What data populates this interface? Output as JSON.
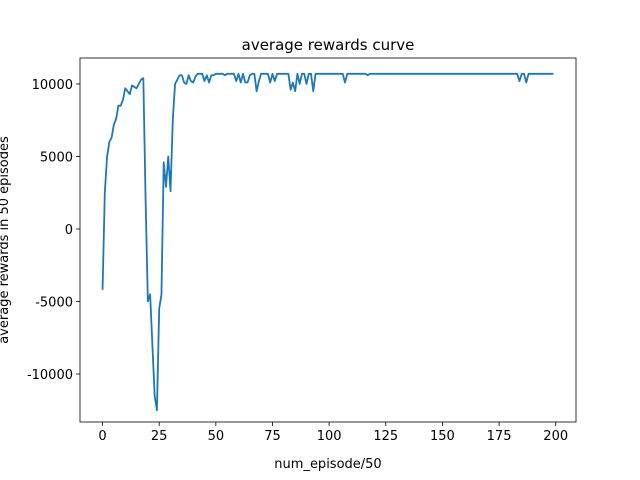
{
  "chart_data": {
    "type": "line",
    "title": "average rewards curve",
    "x_label": "num_episode/50",
    "y_label": "average rewards in 50 episodes",
    "x": [
      0,
      1,
      2,
      3,
      4,
      5,
      6,
      7,
      8,
      9,
      10,
      11,
      12,
      13,
      14,
      15,
      16,
      17,
      18,
      19,
      20,
      21,
      22,
      23,
      24,
      25,
      26,
      27,
      28,
      29,
      30,
      31,
      32,
      33,
      34,
      35,
      36,
      37,
      38,
      39,
      40,
      41,
      42,
      43,
      44,
      45,
      46,
      47,
      48,
      49,
      50,
      51,
      52,
      53,
      54,
      55,
      56,
      57,
      58,
      59,
      60,
      61,
      62,
      63,
      64,
      65,
      66,
      67,
      68,
      69,
      70,
      71,
      72,
      73,
      74,
      75,
      76,
      77,
      78,
      79,
      80,
      81,
      82,
      83,
      84,
      85,
      86,
      87,
      88,
      89,
      90,
      91,
      92,
      93,
      94,
      95,
      96,
      97,
      98,
      99,
      100,
      101,
      102,
      103,
      104,
      105,
      106,
      107,
      108,
      109,
      110,
      111,
      112,
      113,
      114,
      115,
      116,
      117,
      118,
      119,
      120,
      121,
      122,
      123,
      124,
      125,
      126,
      127,
      128,
      129,
      130,
      131,
      132,
      133,
      134,
      135,
      136,
      137,
      138,
      139,
      140,
      141,
      142,
      143,
      144,
      145,
      146,
      147,
      148,
      149,
      150,
      151,
      152,
      153,
      154,
      155,
      156,
      157,
      158,
      159,
      160,
      161,
      162,
      163,
      164,
      165,
      166,
      167,
      168,
      169,
      170,
      171,
      172,
      173,
      174,
      175,
      176,
      177,
      178,
      179,
      180,
      181,
      182,
      183,
      184,
      185,
      186,
      187,
      188,
      189,
      190,
      191,
      192,
      193,
      194,
      195,
      196,
      197,
      198,
      199
    ],
    "series": [
      {
        "name": "average rewards",
        "color": "#1f77b4",
        "values": [
          -4200,
          2500,
          5000,
          6000,
          6300,
          7200,
          7600,
          8500,
          8500,
          8900,
          9700,
          9500,
          9300,
          9900,
          9800,
          9700,
          10000,
          10300,
          10400,
          2000,
          -5000,
          -4500,
          -8000,
          -11500,
          -12500,
          -5500,
          -4500,
          4600,
          2900,
          5000,
          2600,
          7500,
          10000,
          10300,
          10600,
          10600,
          10100,
          10000,
          10600,
          10200,
          10100,
          10500,
          10700,
          10700,
          10700,
          10200,
          10600,
          10100,
          10600,
          10600,
          10700,
          10700,
          10700,
          10700,
          10600,
          10700,
          10700,
          10700,
          10700,
          10200,
          10700,
          10100,
          10700,
          10100,
          10100,
          10600,
          10700,
          10700,
          9500,
          10200,
          10700,
          10700,
          10700,
          10700,
          10100,
          10700,
          10200,
          10700,
          10700,
          10700,
          10700,
          10700,
          10700,
          9600,
          10100,
          9500,
          10700,
          10000,
          10700,
          10700,
          10000,
          10700,
          10700,
          9500,
          10700,
          10700,
          10700,
          10700,
          10700,
          10700,
          10700,
          10700,
          10700,
          10700,
          10700,
          10700,
          10700,
          10100,
          10700,
          10700,
          10700,
          10700,
          10700,
          10700,
          10700,
          10700,
          10700,
          10600,
          10700,
          10700,
          10700,
          10700,
          10700,
          10700,
          10700,
          10700,
          10700,
          10700,
          10700,
          10700,
          10700,
          10700,
          10700,
          10700,
          10700,
          10700,
          10700,
          10700,
          10700,
          10700,
          10700,
          10700,
          10700,
          10700,
          10700,
          10700,
          10700,
          10700,
          10700,
          10700,
          10700,
          10700,
          10700,
          10700,
          10700,
          10700,
          10700,
          10700,
          10700,
          10700,
          10700,
          10700,
          10700,
          10700,
          10700,
          10700,
          10700,
          10700,
          10700,
          10700,
          10700,
          10700,
          10700,
          10700,
          10700,
          10700,
          10700,
          10700,
          10700,
          10700,
          10700,
          10700,
          10700,
          10700,
          10200,
          10700,
          10700,
          10100,
          10700,
          10700,
          10700,
          10700,
          10700,
          10700,
          10700,
          10700,
          10700,
          10700,
          10700,
          10700
        ]
      }
    ],
    "xlim": [
      -9.95,
      208.95
    ],
    "ylim": [
      -13310,
      11790
    ],
    "xticks": [
      0,
      25,
      50,
      75,
      100,
      125,
      150,
      175,
      200
    ],
    "yticks": [
      -10000,
      -5000,
      0,
      5000,
      10000
    ]
  }
}
